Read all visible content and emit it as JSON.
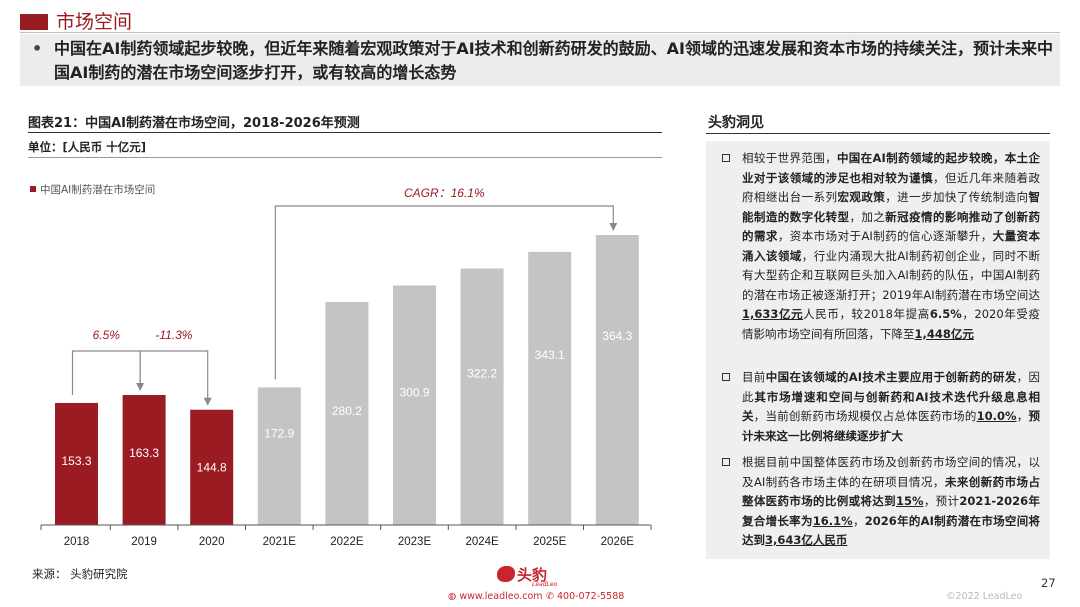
{
  "header": {
    "title": "市场空间",
    "bullet": "•",
    "banner": "中国在AI制药领域起步较晚，但近年来随着宏观政策对于AI技术和创新药研发的鼓励、AI领域的迅速发展和资本市场的持续关注，预计未来中国AI制药的潜在市场空间逐步打开，或有较高的增长态势"
  },
  "figure": {
    "title": "图表21：中国AI制药潜在市场空间，2018-2026年预测",
    "unit": "单位：[人民币 十亿元]",
    "legend": "中国AI制药潜在市场空间",
    "source": "来源：  头豹研究院"
  },
  "chart_data": {
    "type": "bar",
    "categories": [
      "2018",
      "2019",
      "2020",
      "2021E",
      "2022E",
      "2023E",
      "2024E",
      "2025E",
      "2026E"
    ],
    "series": [
      {
        "name": "中国AI制药潜在市场空间",
        "values": [
          153.3,
          163.3,
          144.8,
          172.9,
          280.2,
          300.9,
          322.2,
          343.1,
          364.3
        ],
        "labels": [
          "153.3",
          "163.3",
          "144.8",
          "172.9",
          "280.2",
          "300.9",
          "322.2",
          "343.1",
          "364.3"
        ]
      }
    ],
    "historic_color": "#9b1b22",
    "forecast_color": "#c4c4c4",
    "annotations": [
      {
        "from": "2018",
        "to": "2019",
        "text": "6.5%"
      },
      {
        "from": "2019",
        "to": "2020",
        "text": "-11.3%"
      },
      {
        "from": "2021E",
        "to": "2026E",
        "text": "CAGR：16.1%"
      }
    ],
    "ylim": [
      0,
      420
    ],
    "grid": false
  },
  "insights": {
    "title": "头豹洞见",
    "items": [
      [
        {
          "t": "相较于世界范围，"
        },
        {
          "t": "中国在AI制药领域的起步较晚，本土企业对于该领域的涉足也相对较为谨慎",
          "b": true
        },
        {
          "t": "，但近几年来随着政府相继出台一系列"
        },
        {
          "t": "宏观政策",
          "b": true
        },
        {
          "t": "，进一步加快了传统制造向"
        },
        {
          "t": "智能制造的数字化转型",
          "b": true
        },
        {
          "t": "，加之"
        },
        {
          "t": "新冠疫情的影响推动了创新药的需求",
          "b": true
        },
        {
          "t": "，资本市场对于AI制药的信心逐渐攀升，"
        },
        {
          "t": "大量资本涌入该领域",
          "b": true
        },
        {
          "t": "，行业内涌现大批AI制药初创企业，同时不断有大型药企和互联网巨头加入AI制药的队伍，中国AI制药的潜在市场正被逐渐打开；2019年AI制药潜在市场空间达"
        },
        {
          "t": "1,633亿元",
          "u": true
        },
        {
          "t": "人民币，较2018年提高"
        },
        {
          "t": "6.5%",
          "b": true
        },
        {
          "t": "，2020年受疫情影响市场空间有所回落，下降至"
        },
        {
          "t": "1,448亿元",
          "u": true
        }
      ],
      [
        {
          "t": "目前"
        },
        {
          "t": "中国在该领域的AI技术主要应用于创新药的研发",
          "b": true
        },
        {
          "t": "，因此"
        },
        {
          "t": "其市场增速和空间与创新药和AI技术迭代升级息息相关",
          "b": true
        },
        {
          "t": "，当前创新药市场规模仅占总体医药市场的"
        },
        {
          "t": "10.0%",
          "u": true
        },
        {
          "t": "，"
        },
        {
          "t": "预计未来这一比例将继续逐步扩大",
          "b": true
        }
      ],
      [
        {
          "t": "根据目前中国整体医药市场及创新药市场空间的情况，以及AI制药各市场主体的在研项目情况，"
        },
        {
          "t": "未来创新药市场占整体医药市场的比例或将达到",
          "b": true
        },
        {
          "t": "15%",
          "u": true
        },
        {
          "t": "，预计"
        },
        {
          "t": "2021-2026年复合增长率为",
          "b": true
        },
        {
          "t": "16.1%",
          "u": true
        },
        {
          "t": "，"
        },
        {
          "t": "2026年的AI制药潜在市场空间将达到",
          "b": true
        },
        {
          "t": "3,643亿人民币",
          "u": true
        }
      ]
    ]
  },
  "footer": {
    "logo_cn": "头豹",
    "logo_en": "LeadLeo",
    "website": "www.leadleo.com",
    "phone": "400-072-5588",
    "copyright": "©2022 LeadLeo",
    "page": "27"
  }
}
